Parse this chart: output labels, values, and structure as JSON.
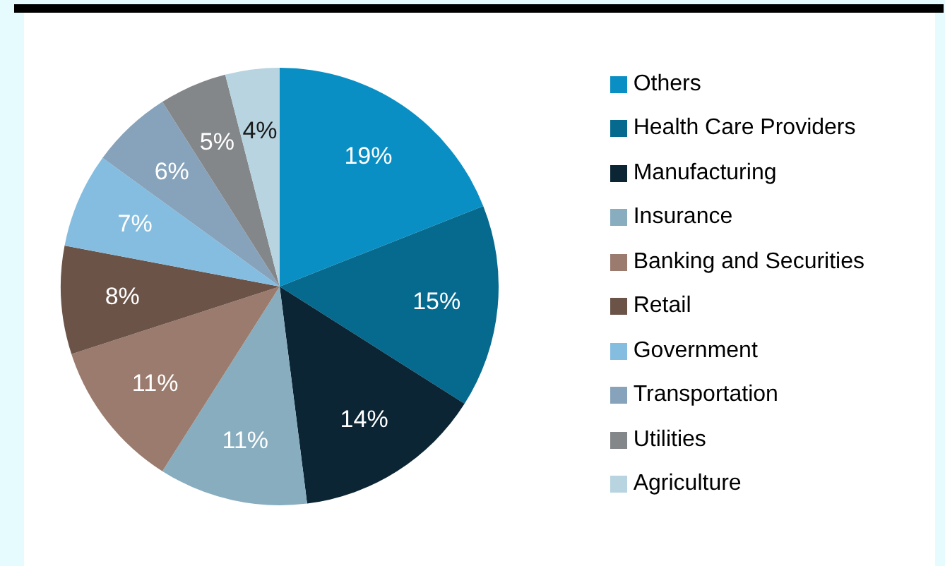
{
  "chart_data": {
    "type": "pie",
    "categories": [
      "Others",
      "Health Care Providers",
      "Manufacturing",
      "Insurance",
      "Banking and Securities",
      "Retail",
      "Government",
      "Transportation",
      "Utilities",
      "Agriculture"
    ],
    "values": [
      19,
      15,
      14,
      11,
      11,
      8,
      7,
      6,
      5,
      4
    ],
    "value_labels": [
      "19%",
      "15%",
      "14%",
      "11%",
      "11%",
      "8%",
      "7%",
      "6%",
      "5%",
      "4%"
    ],
    "colors": [
      "#0a8fc4",
      "#066a8f",
      "#0b2535",
      "#87adbf",
      "#9a7b6e",
      "#6b5348",
      "#85bde0",
      "#86a3bb",
      "#84878a",
      "#b7d4e0"
    ],
    "legend": "right"
  }
}
